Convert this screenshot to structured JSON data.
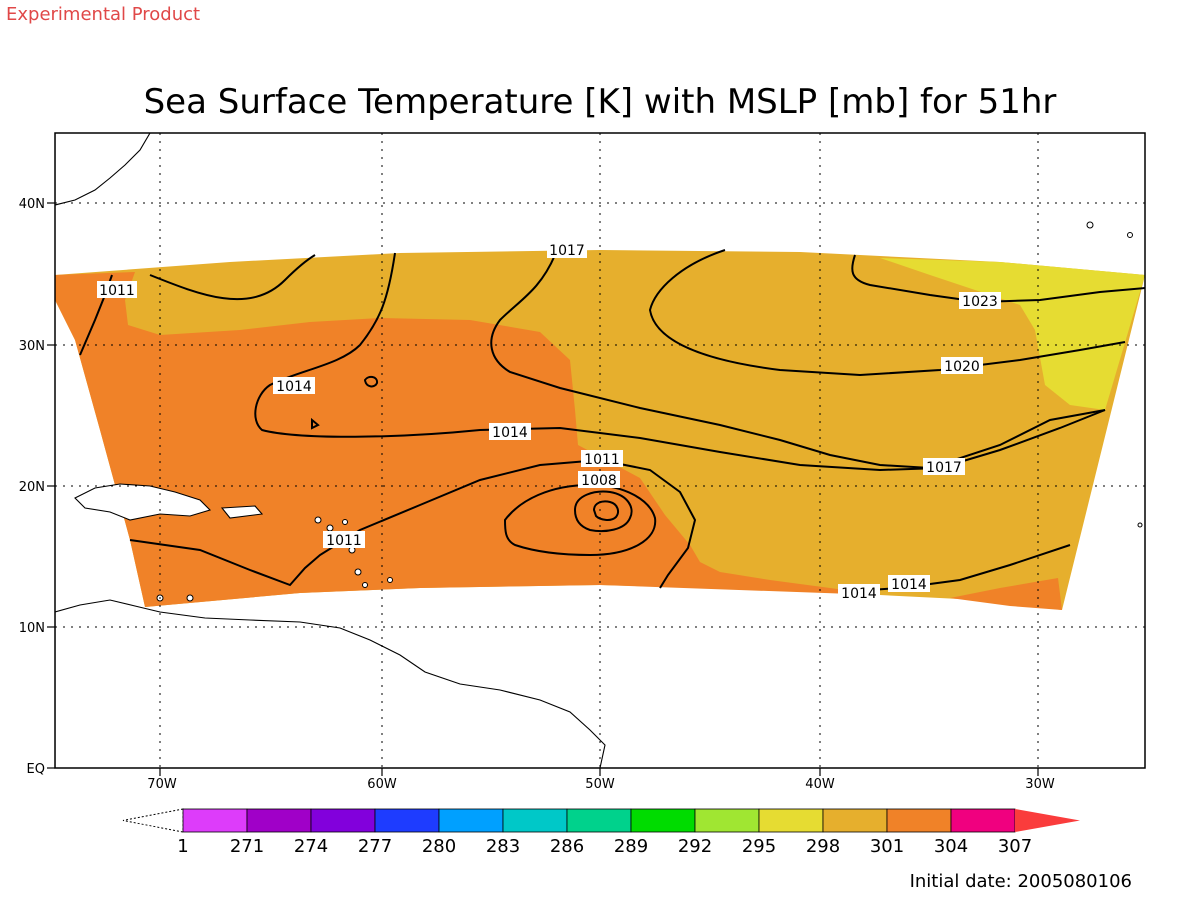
{
  "header": {
    "product_label": "Experimental Product",
    "title": "Sea Surface Temperature [K] with MSLP [mb] for 51hr"
  },
  "map": {
    "lon_ticks": [
      "70W",
      "60W",
      "50W",
      "40W",
      "30W"
    ],
    "lat_ticks": [
      "40N",
      "30N",
      "20N",
      "10N",
      "EQ"
    ],
    "grid": true,
    "isobar_labels": [
      "1011",
      "1017",
      "1023",
      "1014",
      "1020",
      "1014",
      "1011",
      "1008",
      "1017",
      "1011",
      "1014",
      "1014"
    ]
  },
  "colorbar": {
    "tick_labels": [
      "1",
      "271",
      "274",
      "277",
      "280",
      "283",
      "286",
      "289",
      "292",
      "295",
      "298",
      "301",
      "304",
      "307"
    ],
    "colors": [
      "#dd3cfa",
      "#a000c8",
      "#8200dc",
      "#1e3cff",
      "#00a0ff",
      "#00c8c8",
      "#00d28c",
      "#00dc00",
      "#a0e632",
      "#e6dc32",
      "#e6af2d",
      "#f08228",
      "#f0007f",
      "#fa3c3c"
    ]
  },
  "footer": {
    "initial_date": "Initial date: 2005080106"
  },
  "colors": {
    "sst_298": "#e6dc32",
    "sst_301": "#e6af2d",
    "sst_304": "#f08228",
    "product_label": "#e04848"
  }
}
